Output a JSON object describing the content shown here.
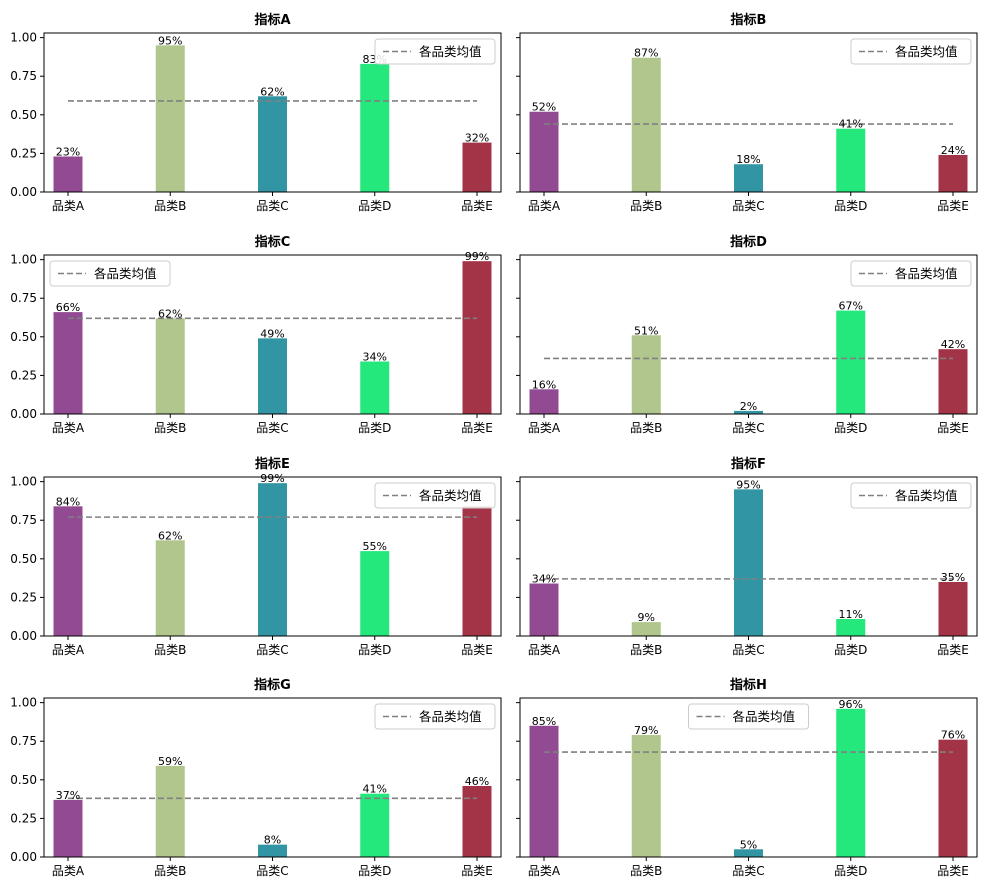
{
  "chart_data": [
    {
      "type": "bar",
      "title": "指标A",
      "categories": [
        "品类A",
        "品类B",
        "品类C",
        "品类D",
        "品类E"
      ],
      "values": [
        0.23,
        0.95,
        0.62,
        0.83,
        0.32
      ],
      "bar_labels": [
        "23%",
        "95%",
        "62%",
        "83%",
        "32%"
      ],
      "mean": 0.59,
      "legend": "各品类均值",
      "legend_loc": "upper right",
      "ylim": [
        0,
        1.03
      ],
      "yticks": [
        "0.00",
        "0.25",
        "0.50",
        "0.75",
        "1.00"
      ]
    },
    {
      "type": "bar",
      "title": "指标B",
      "categories": [
        "品类A",
        "品类B",
        "品类C",
        "品类D",
        "品类E"
      ],
      "values": [
        0.52,
        0.87,
        0.18,
        0.41,
        0.24
      ],
      "bar_labels": [
        "52%",
        "87%",
        "18%",
        "41%",
        "24%"
      ],
      "mean": 0.44,
      "legend": "各品类均值",
      "legend_loc": "upper right",
      "ylim": [
        0,
        1.03
      ]
    },
    {
      "type": "bar",
      "title": "指标C",
      "categories": [
        "品类A",
        "品类B",
        "品类C",
        "品类D",
        "品类E"
      ],
      "values": [
        0.66,
        0.62,
        0.49,
        0.34,
        0.99
      ],
      "bar_labels": [
        "66%",
        "62%",
        "49%",
        "34%",
        "99%"
      ],
      "mean": 0.62,
      "legend": "各品类均值",
      "legend_loc": "upper left",
      "ylim": [
        0,
        1.03
      ],
      "yticks": [
        "0.00",
        "0.25",
        "0.50",
        "0.75",
        "1.00"
      ]
    },
    {
      "type": "bar",
      "title": "指标D",
      "categories": [
        "品类A",
        "品类B",
        "品类C",
        "品类D",
        "品类E"
      ],
      "values": [
        0.16,
        0.51,
        0.02,
        0.67,
        0.42
      ],
      "bar_labels": [
        "16%",
        "51%",
        "2%",
        "67%",
        "42%"
      ],
      "mean": 0.36,
      "legend": "各品类均值",
      "legend_loc": "upper right",
      "ylim": [
        0,
        1.03
      ]
    },
    {
      "type": "bar",
      "title": "指标E",
      "categories": [
        "品类A",
        "品类B",
        "品类C",
        "品类D",
        "品类E"
      ],
      "values": [
        0.84,
        0.62,
        0.99,
        0.55,
        0.84
      ],
      "bar_labels": [
        "84%",
        "62%",
        "99%",
        "55%",
        ""
      ],
      "mean": 0.77,
      "legend": "各品类均值",
      "legend_loc": "upper right",
      "ylim": [
        0,
        1.03
      ],
      "yticks": [
        "0.00",
        "0.25",
        "0.50",
        "0.75",
        "1.00"
      ]
    },
    {
      "type": "bar",
      "title": "指标F",
      "categories": [
        "品类A",
        "品类B",
        "品类C",
        "品类D",
        "品类E"
      ],
      "values": [
        0.34,
        0.09,
        0.95,
        0.11,
        0.35
      ],
      "bar_labels": [
        "34%",
        "9%",
        "95%",
        "11%",
        "35%"
      ],
      "mean": 0.37,
      "legend": "各品类均值",
      "legend_loc": "upper right",
      "ylim": [
        0,
        1.03
      ]
    },
    {
      "type": "bar",
      "title": "指标G",
      "categories": [
        "品类A",
        "品类B",
        "品类C",
        "品类D",
        "品类E"
      ],
      "values": [
        0.37,
        0.59,
        0.08,
        0.41,
        0.46
      ],
      "bar_labels": [
        "37%",
        "59%",
        "8%",
        "41%",
        "46%"
      ],
      "mean": 0.38,
      "legend": "各品类均值",
      "legend_loc": "upper right",
      "ylim": [
        0,
        1.03
      ],
      "yticks": [
        "0.00",
        "0.25",
        "0.50",
        "0.75",
        "1.00"
      ]
    },
    {
      "type": "bar",
      "title": "指标H",
      "categories": [
        "品类A",
        "品类B",
        "品类C",
        "品类D",
        "品类E"
      ],
      "values": [
        0.85,
        0.79,
        0.05,
        0.96,
        0.76
      ],
      "bar_labels": [
        "85%",
        "79%",
        "5%",
        "96%",
        "76%"
      ],
      "mean": 0.68,
      "legend": "各品类均值",
      "legend_loc": "upper center",
      "ylim": [
        0,
        1.03
      ]
    }
  ],
  "colors": [
    "#924a93",
    "#b0c68c",
    "#3295a4",
    "#24e87c",
    "#a33346"
  ],
  "mean_line_color": "#808080"
}
